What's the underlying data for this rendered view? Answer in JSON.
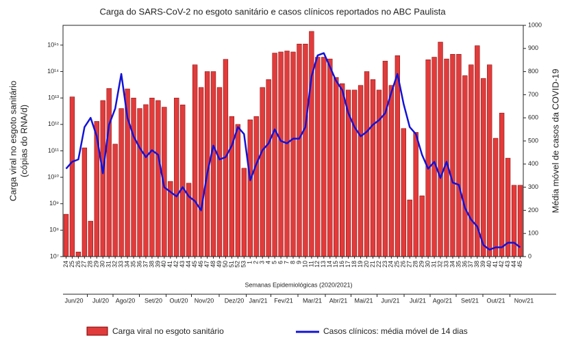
{
  "chart_data": {
    "type": "bar-line-dual",
    "title": "Carga do SARS-CoV-2 no esgoto sanitário e casos clínicos reportados no ABC Paulista",
    "x_label": "Semanas Epidemiológicas (2020/2021)",
    "y_label": [
      "Carga viral no esgoto sanitário",
      "(cópias do RNA/d)"
    ],
    "y2_label": "Média móvel de casos da COVID-19",
    "categories": [
      "24",
      "25",
      "26",
      "27",
      "28",
      "29",
      "30",
      "31",
      "32",
      "33",
      "34",
      "35",
      "36",
      "37",
      "38",
      "39",
      "40",
      "41",
      "42",
      "43",
      "44",
      "45",
      "46",
      "47",
      "48",
      "49",
      "50",
      "51",
      "52",
      "53",
      "1",
      "2",
      "3",
      "4",
      "5",
      "6",
      "7",
      "8",
      "9",
      "10",
      "11",
      "12",
      "13",
      "14",
      "15",
      "16",
      "17",
      "18",
      "19",
      "20",
      "21",
      "22",
      "23",
      "24",
      "25",
      "26",
      "27",
      "28",
      "29",
      "30",
      "31",
      "32",
      "33",
      "34",
      "35",
      "36",
      "37",
      "38",
      "39",
      "40",
      "41",
      "42",
      "43",
      "44",
      "45"
    ],
    "months": [
      "Jun/20",
      "Jul/20",
      "Ago/20",
      "Set/20",
      "Out/20",
      "Nov/20",
      "Dez/20",
      "Jan/21",
      "Fev/21",
      "Mar/21",
      "Abr/21",
      "Mai/21",
      "Jun/21",
      "Jul/21",
      "Ago/21",
      "Set/21",
      "Out/21",
      "Nov/21"
    ],
    "log_y": true,
    "ylim": [
      10000000,
      5600000000000000
    ],
    "yticks": [
      {
        "value": 10000000,
        "label": "10⁷"
      },
      {
        "value": 100000000,
        "label": "10⁸"
      },
      {
        "value": 1000000000,
        "label": "10⁹"
      },
      {
        "value": 10000000000,
        "label": "10¹⁰"
      },
      {
        "value": 100000000000,
        "label": "10¹¹"
      },
      {
        "value": 1000000000000,
        "label": "10¹²"
      },
      {
        "value": 10000000000000,
        "label": "10¹³"
      },
      {
        "value": 100000000000000,
        "label": "10¹⁴"
      },
      {
        "value": 1000000000000000,
        "label": "10¹⁵"
      }
    ],
    "y2lim": [
      0,
      1000
    ],
    "y2ticks": [
      0,
      100,
      200,
      300,
      400,
      500,
      600,
      700,
      800,
      900,
      1000
    ],
    "series": [
      {
        "name": "Carga viral no esgoto sanitário",
        "kind": "bar",
        "color": "#e23b3b",
        "values": [
          400000000,
          11000000000000,
          15000000,
          130000000000,
          220000000,
          1300000000000,
          8000000000000,
          23000000000000,
          180000000000,
          4000000000000,
          22000000000000,
          10000000000000,
          4000000000000,
          5600000000000,
          10000000000000,
          8000000000000,
          4500000000000,
          7000000000,
          10000000000000,
          5500000000000,
          6000000000,
          180000000000000,
          25000000000000,
          100000000000000,
          100000000000000,
          25000000000000,
          290000000000000,
          2000000000000,
          1000000000000,
          22000000000,
          1500000000000,
          2000000000000,
          25000000000000,
          50000000000000,
          500000000000000,
          550000000000000,
          600000000000000,
          550000000000000,
          1100000000000000,
          1100000000000000,
          3300000000000000,
          350000000000000,
          350000000000000,
          300000000000000,
          60000000000000,
          35000000000000,
          20000000000000,
          20000000000000,
          30000000000000,
          100000000000000,
          50000000000000,
          20000000000000,
          250000000000000,
          30000000000000,
          400000000000000,
          700000000000,
          1400000000,
          500000000000,
          2000000000,
          280000000000000,
          350000000000000,
          1300000000000000,
          300000000000000,
          450000000000000,
          450000000000000,
          70000000000000,
          180000000000000,
          950000000000000,
          55000000000000,
          180000000000000,
          300000000000,
          2700000000000,
          53000000000,
          5000000000,
          5000000000
        ]
      },
      {
        "name": "Casos clínicos: média móvel de 14 dias",
        "kind": "line",
        "axis": "y2",
        "color": "#1212d8",
        "values": [
          380,
          410,
          420,
          560,
          600,
          520,
          360,
          570,
          640,
          790,
          600,
          520,
          470,
          430,
          460,
          440,
          300,
          280,
          260,
          300,
          260,
          240,
          200,
          360,
          480,
          420,
          430,
          480,
          560,
          530,
          330,
          400,
          460,
          490,
          550,
          500,
          490,
          510,
          510,
          560,
          780,
          870,
          880,
          820,
          760,
          720,
          620,
          560,
          520,
          540,
          570,
          590,
          620,
          710,
          790,
          660,
          560,
          530,
          440,
          380,
          410,
          340,
          410,
          320,
          310,
          210,
          160,
          130,
          50,
          30,
          40,
          40,
          60,
          60,
          40
        ]
      }
    ]
  }
}
